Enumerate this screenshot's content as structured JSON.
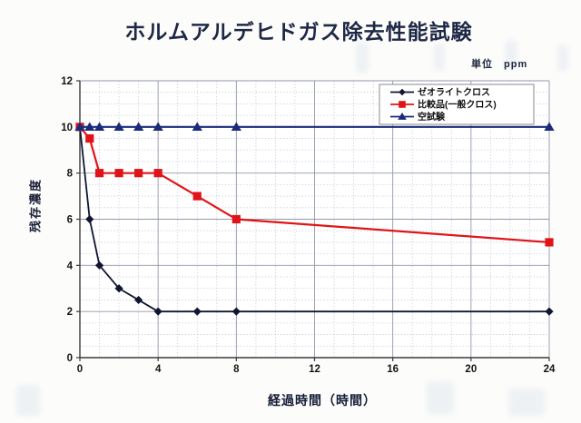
{
  "title": "ホルムアルデヒドガス除去性能試験",
  "unit_label": "単位　ppm",
  "chart_data": {
    "type": "line",
    "title": "ホルムアルデヒドガス除去性能試験",
    "xlabel": "経過時間（時間）",
    "ylabel": "残存濃度",
    "unit": "ppm",
    "x": [
      0,
      0.5,
      1,
      2,
      3,
      4,
      6,
      8,
      24
    ],
    "series": [
      {
        "name": "ゼオライトクロス",
        "marker": "diamond",
        "color": "#101631",
        "values": [
          10,
          6,
          4,
          3,
          2.5,
          2,
          2,
          2,
          2
        ]
      },
      {
        "name": "比較品(一般クロス)",
        "marker": "square",
        "color": "#e01418",
        "values": [
          10,
          9.5,
          8,
          8,
          8,
          8,
          7,
          6,
          5
        ]
      },
      {
        "name": "空試験",
        "marker": "triangle",
        "color": "#1b2b7a",
        "values": [
          10,
          10,
          10,
          10,
          10,
          10,
          10,
          10,
          10
        ]
      }
    ],
    "xlim": [
      0,
      24
    ],
    "ylim": [
      0,
      12
    ],
    "x_ticks": [
      0,
      4,
      8,
      12,
      16,
      20,
      24
    ],
    "y_ticks": [
      0,
      2,
      4,
      6,
      8,
      10,
      12
    ],
    "x_minor_step": 1,
    "y_minor_step": 0.5,
    "grid": true,
    "legend_position": "top-right"
  },
  "colors": {
    "background": "#fcfcfa",
    "plot_background": "#ffffff",
    "major_grid": "#9298a8",
    "minor_grid": "#c2c6d4",
    "axis": "#3a3a3a",
    "tick_text": "#151515",
    "title_text": "#1e2847",
    "legend_border": "#8a8a8a"
  }
}
